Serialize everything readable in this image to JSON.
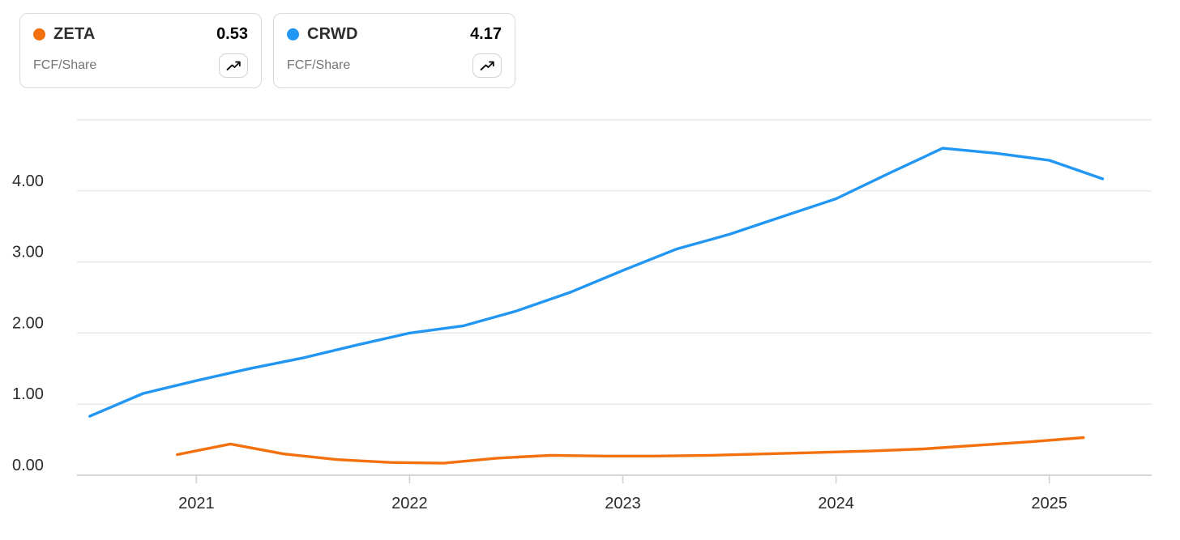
{
  "legend_cards": [
    {
      "ticker": "ZETA",
      "value": "0.53",
      "metric": "FCF/Share",
      "color": "#F2700D"
    },
    {
      "ticker": "CRWD",
      "value": "4.17",
      "metric": "FCF/Share",
      "color": "#2196F3"
    }
  ],
  "chart_data": {
    "type": "line",
    "title": "",
    "xlabel": "",
    "ylabel": "",
    "metric": "FCF/Share",
    "grid": true,
    "legend_position": "top-left cards",
    "xlim": [
      2020.44,
      2025.48
    ],
    "ylim": [
      0,
      5
    ],
    "x_ticks": [
      2021,
      2022,
      2023,
      2024,
      2025
    ],
    "x_tick_labels": [
      "2021",
      "2022",
      "2023",
      "2024",
      "2025"
    ],
    "y_ticks": [
      0,
      1,
      2,
      3,
      4
    ],
    "y_tick_labels": [
      "0.00",
      "1.00",
      "2.00",
      "3.00",
      "4.00"
    ],
    "gridline_values": [
      0,
      1,
      2,
      3,
      4,
      5
    ],
    "style": {
      "grid_color": "#e4e4e4",
      "axis_color": "#c9c9c9",
      "tick_color": "#cfcfcf",
      "tick_label_color": "#2b2b2b",
      "line_width": 3.4
    },
    "series": [
      {
        "name": "ZETA",
        "color": "#F2700D",
        "last_value": 0.53,
        "x": [
          2020.91,
          2021.16,
          2021.41,
          2021.66,
          2021.91,
          2022.16,
          2022.41,
          2022.66,
          2022.91,
          2023.16,
          2023.41,
          2023.66,
          2023.91,
          2024.16,
          2024.41,
          2024.66,
          2024.91,
          2025.16
        ],
        "values": [
          0.29,
          0.44,
          0.3,
          0.22,
          0.18,
          0.17,
          0.24,
          0.28,
          0.27,
          0.27,
          0.28,
          0.3,
          0.32,
          0.34,
          0.37,
          0.42,
          0.47,
          0.53
        ]
      },
      {
        "name": "CRWD",
        "color": "#2196F3",
        "last_value": 4.17,
        "x": [
          2020.5,
          2020.75,
          2021.0,
          2021.25,
          2021.5,
          2021.75,
          2022.0,
          2022.25,
          2022.5,
          2022.75,
          2023.0,
          2023.25,
          2023.5,
          2023.75,
          2024.0,
          2024.25,
          2024.5,
          2024.75,
          2025.0,
          2025.25
        ],
        "values": [
          0.83,
          1.15,
          1.33,
          1.5,
          1.65,
          1.83,
          2.0,
          2.1,
          2.31,
          2.57,
          2.88,
          3.18,
          3.39,
          3.64,
          3.89,
          4.25,
          4.6,
          4.53,
          4.43,
          4.17
        ]
      }
    ]
  }
}
